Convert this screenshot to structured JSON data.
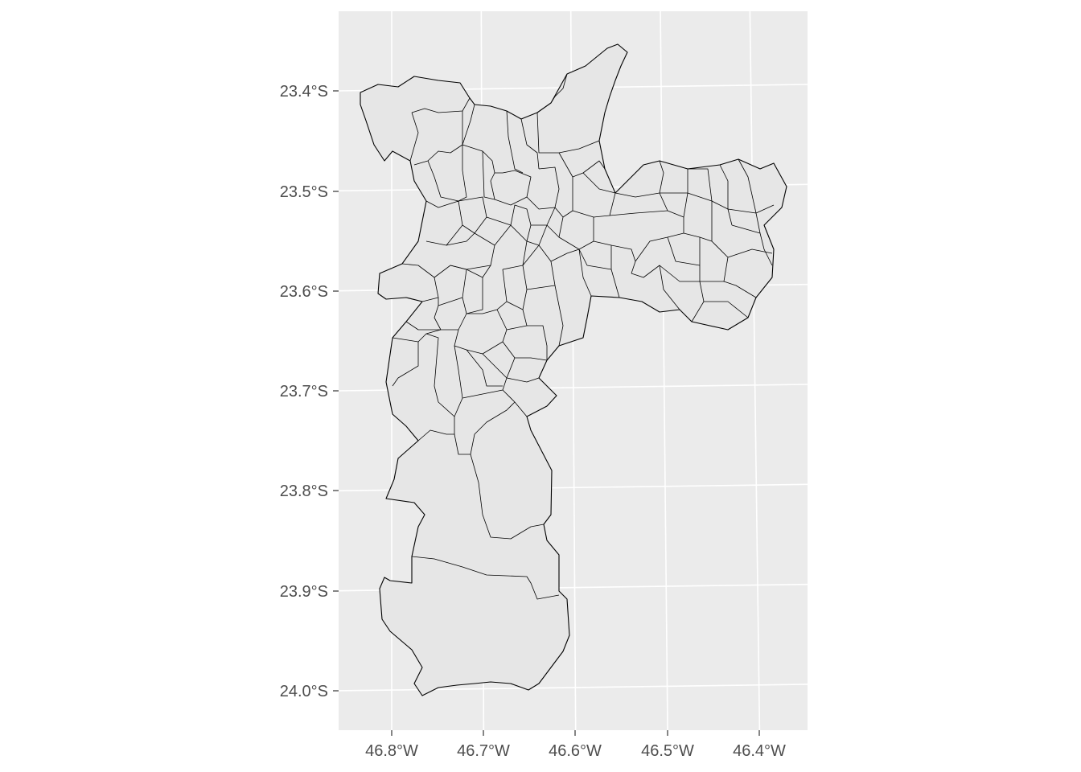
{
  "map": {
    "type": "choropleth-outline",
    "fill_color": "#e6e6e6",
    "border_color": "#000000",
    "panel_background": "#ebebeb",
    "grid_color": "#ffffff",
    "grid": true,
    "lon_ticks": [
      {
        "value": -46.8,
        "label": "46.8°W"
      },
      {
        "value": -46.7,
        "label": "46.7°W"
      },
      {
        "value": -46.6,
        "label": "46.6°W"
      },
      {
        "value": -46.5,
        "label": "46.5°W"
      },
      {
        "value": -46.4,
        "label": "46.4°W"
      }
    ],
    "lat_ticks": [
      {
        "value": -23.4,
        "label": "23.4°S"
      },
      {
        "value": -23.5,
        "label": "23.5°S"
      },
      {
        "value": -23.6,
        "label": "23.6°S"
      },
      {
        "value": -23.7,
        "label": "23.7°S"
      },
      {
        "value": -23.8,
        "label": "23.8°S"
      },
      {
        "value": -23.9,
        "label": "23.9°S"
      },
      {
        "value": -24.0,
        "label": "24.0°S"
      }
    ]
  }
}
